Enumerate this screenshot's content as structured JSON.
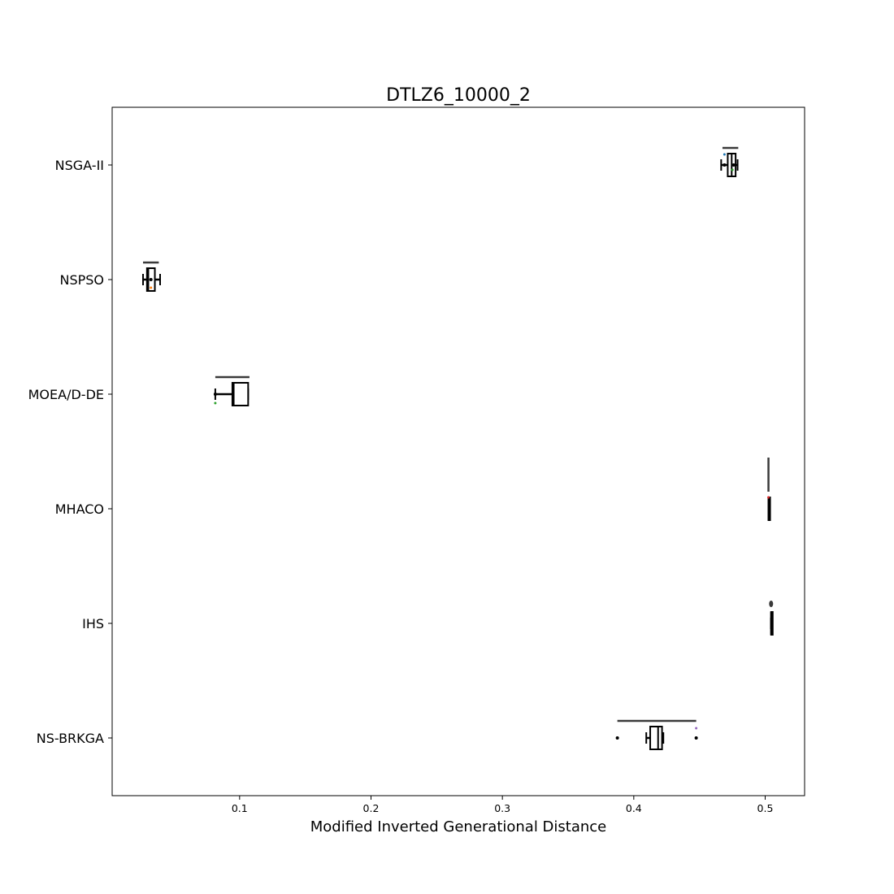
{
  "chart_data": {
    "type": "boxplot",
    "orientation": "horizontal",
    "title": "DTLZ6_10000_2",
    "xlabel": "Modified Inverted Generational Distance",
    "ylabel": "",
    "xlim": [
      0.003,
      0.53
    ],
    "xticks": [
      0.1,
      0.2,
      0.3,
      0.4,
      0.5
    ],
    "xtick_labels": [
      "0.1",
      "0.2",
      "0.3",
      "0.4",
      "0.5"
    ],
    "grid": false,
    "legend": "none",
    "categories": [
      "NSGA-II",
      "NSPSO",
      "MOEA/D-DE",
      "MHACO",
      "IHS",
      "NS-BRKGA"
    ],
    "series": [
      {
        "whisker_low": 0.4665,
        "q1": 0.4715,
        "median": 0.4745,
        "q3": 0.4775,
        "whisker_high": 0.479,
        "range_bar": [
          0.4675,
          0.4795
        ],
        "outliers": [
          0.469,
          0.476
        ]
      },
      {
        "whisker_low": 0.0265,
        "q1": 0.0295,
        "median": 0.0305,
        "q3": 0.0355,
        "whisker_high": 0.0395,
        "range_bar": [
          0.0265,
          0.0385
        ],
        "outliers": [
          0.0325
        ]
      },
      {
        "whisker_low": 0.0815,
        "q1": 0.0945,
        "median": 0.0955,
        "q3": 0.1065,
        "whisker_high": 0.1065,
        "range_bar": [
          0.0815,
          0.1075
        ],
        "outliers": [
          0.0815
        ]
      },
      {
        "whisker_low": 0.5025,
        "q1": 0.5025,
        "median": 0.5025,
        "q3": 0.5025,
        "whisker_high": 0.5025,
        "range_bar": [
          0.5025,
          0.5025
        ],
        "outliers": []
      },
      {
        "whisker_low": 0.5045,
        "q1": 0.5045,
        "median": 0.5045,
        "q3": 0.5045,
        "whisker_high": 0.5045,
        "range_bar": [
          0.504,
          0.505
        ],
        "outliers": []
      },
      {
        "whisker_low": 0.4095,
        "q1": 0.4125,
        "median": 0.4185,
        "q3": 0.4215,
        "whisker_high": 0.4225,
        "range_bar": [
          0.3875,
          0.4475
        ],
        "outliers": [
          0.3875,
          0.4475
        ]
      }
    ]
  }
}
